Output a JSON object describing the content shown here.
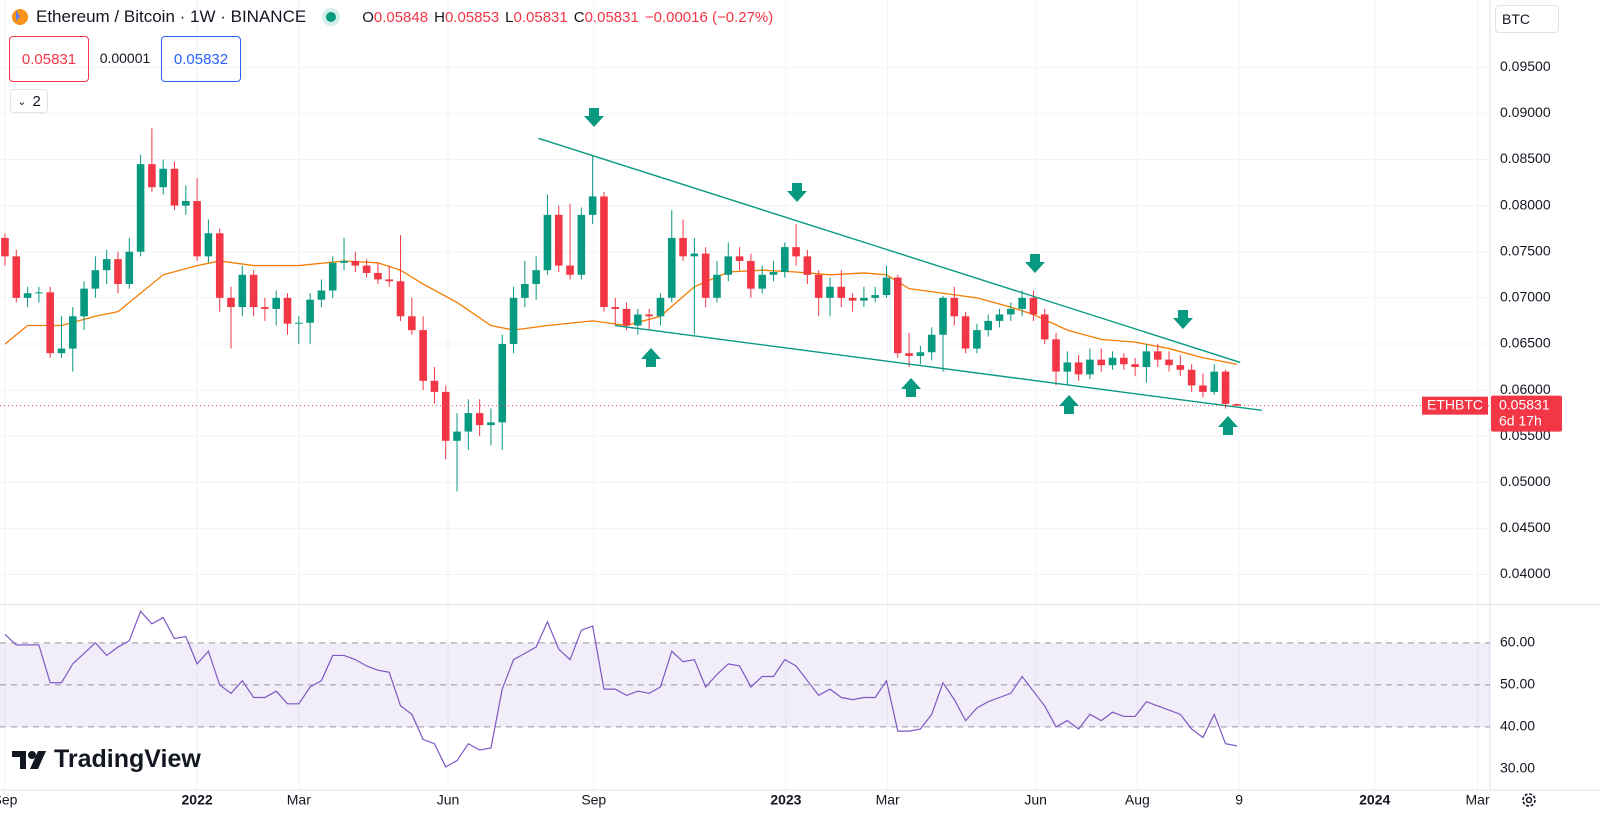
{
  "header": {
    "title": "Ethereum / Bitcoin · 1W · BINANCE",
    "ohlc_labels": [
      "O",
      "H",
      "L",
      "C"
    ],
    "change": "−0.00016 (−0.27%)",
    "sell": 0.05831,
    "spread": 1e-05,
    "buy": 0.05832,
    "indicators": "2",
    "currency": "BTC",
    "logo": "TradingView"
  },
  "chart_data": {
    "type": "candlestick",
    "symbol": "ETHBTC",
    "countdown": "6d 17h",
    "up_color": "#089981",
    "down_color": "#f23645",
    "xlim": [
      -0.44,
      131.4
    ],
    "xticks": [
      {
        "value": 0,
        "label": "Sep"
      },
      {
        "value": 17,
        "label": "2022"
      },
      {
        "value": 26,
        "label": "Mar"
      },
      {
        "value": 39.2,
        "label": "Jun"
      },
      {
        "value": 52.1,
        "label": "Sep"
      },
      {
        "value": 69.1,
        "label": "2023"
      },
      {
        "value": 78.1,
        "label": "Mar"
      },
      {
        "value": 91.2,
        "label": "Jun"
      },
      {
        "value": 100.2,
        "label": "Aug"
      },
      {
        "value": 109.2,
        "label": "9"
      },
      {
        "value": 121.2,
        "label": "2024"
      },
      {
        "value": 130.3,
        "label": "Mar"
      }
    ],
    "ylim": [
      0.0368,
      0.1023
    ],
    "yticks": [
      {
        "value": 0.095,
        "label": "0.09500"
      },
      {
        "value": 0.09,
        "label": "0.09000"
      },
      {
        "value": 0.085,
        "label": "0.08500"
      },
      {
        "value": 0.08,
        "label": "0.08000"
      },
      {
        "value": 0.075,
        "label": "0.07500"
      },
      {
        "value": 0.07,
        "label": "0.07000"
      },
      {
        "value": 0.065,
        "label": "0.06500"
      },
      {
        "value": 0.06,
        "label": "0.06000"
      },
      {
        "value": 0.055,
        "label": "0.05500"
      },
      {
        "value": 0.05,
        "label": "0.05000"
      },
      {
        "value": 0.045,
        "label": "0.04500"
      },
      {
        "value": 0.04,
        "label": "0.04000"
      }
    ],
    "candles": [
      [
        0.0765,
        0.077,
        0.0735,
        0.0745
      ],
      [
        0.0745,
        0.0752,
        0.0695,
        0.07
      ],
      [
        0.07,
        0.0712,
        0.069,
        0.0705
      ],
      [
        0.0705,
        0.0712,
        0.0695,
        0.0706
      ],
      [
        0.0706,
        0.0712,
        0.0635,
        0.064
      ],
      [
        0.064,
        0.068,
        0.0635,
        0.0645
      ],
      [
        0.0645,
        0.069,
        0.062,
        0.068
      ],
      [
        0.068,
        0.0718,
        0.0665,
        0.071
      ],
      [
        0.071,
        0.0745,
        0.07,
        0.073
      ],
      [
        0.073,
        0.0752,
        0.0715,
        0.0742
      ],
      [
        0.0742,
        0.075,
        0.0705,
        0.0715
      ],
      [
        0.0715,
        0.0765,
        0.071,
        0.075
      ],
      [
        0.075,
        0.0855,
        0.0745,
        0.0845
      ],
      [
        0.0845,
        0.0884,
        0.0815,
        0.082
      ],
      [
        0.082,
        0.085,
        0.0812,
        0.084
      ],
      [
        0.084,
        0.0848,
        0.0795,
        0.08
      ],
      [
        0.08,
        0.0822,
        0.079,
        0.0805
      ],
      [
        0.0805,
        0.083,
        0.074,
        0.0745
      ],
      [
        0.0745,
        0.0785,
        0.0738,
        0.077
      ],
      [
        0.077,
        0.0775,
        0.0685,
        0.07
      ],
      [
        0.07,
        0.0712,
        0.0645,
        0.069
      ],
      [
        0.069,
        0.0735,
        0.068,
        0.0725
      ],
      [
        0.0725,
        0.073,
        0.068,
        0.069
      ],
      [
        0.069,
        0.07,
        0.0675,
        0.0688
      ],
      [
        0.0688,
        0.0708,
        0.067,
        0.07
      ],
      [
        0.07,
        0.0705,
        0.066,
        0.0672
      ],
      [
        0.0672,
        0.068,
        0.065,
        0.0673
      ],
      [
        0.0673,
        0.0705,
        0.065,
        0.0698
      ],
      [
        0.0698,
        0.072,
        0.069,
        0.0708
      ],
      [
        0.0708,
        0.0745,
        0.07,
        0.0738
      ],
      [
        0.0738,
        0.0765,
        0.073,
        0.074
      ],
      [
        0.074,
        0.075,
        0.0728,
        0.0735
      ],
      [
        0.0735,
        0.0742,
        0.0722,
        0.0727
      ],
      [
        0.0727,
        0.0738,
        0.0715,
        0.072
      ],
      [
        0.072,
        0.0735,
        0.0712,
        0.0718
      ],
      [
        0.0718,
        0.0768,
        0.0675,
        0.068
      ],
      [
        0.068,
        0.07,
        0.066,
        0.0665
      ],
      [
        0.0665,
        0.068,
        0.06,
        0.061
      ],
      [
        0.061,
        0.0625,
        0.0585,
        0.0598
      ],
      [
        0.0598,
        0.0605,
        0.0525,
        0.0545
      ],
      [
        0.0545,
        0.0575,
        0.049,
        0.0555
      ],
      [
        0.0555,
        0.059,
        0.0535,
        0.0575
      ],
      [
        0.0575,
        0.059,
        0.055,
        0.0562
      ],
      [
        0.0562,
        0.058,
        0.054,
        0.0565
      ],
      [
        0.0565,
        0.066,
        0.0535,
        0.065
      ],
      [
        0.065,
        0.0712,
        0.064,
        0.07
      ],
      [
        0.07,
        0.074,
        0.069,
        0.0715
      ],
      [
        0.0715,
        0.0745,
        0.0698,
        0.073
      ],
      [
        0.073,
        0.0812,
        0.0725,
        0.079
      ],
      [
        0.079,
        0.08,
        0.0728,
        0.0735
      ],
      [
        0.0735,
        0.0802,
        0.072,
        0.0725
      ],
      [
        0.0725,
        0.0798,
        0.072,
        0.079
      ],
      [
        0.079,
        0.0855,
        0.078,
        0.081
      ],
      [
        0.081,
        0.0815,
        0.0685,
        0.069
      ],
      [
        0.069,
        0.07,
        0.067,
        0.0688
      ],
      [
        0.0688,
        0.0695,
        0.0665,
        0.067
      ],
      [
        0.067,
        0.0688,
        0.066,
        0.0682
      ],
      [
        0.0682,
        0.0688,
        0.0665,
        0.068
      ],
      [
        0.068,
        0.0705,
        0.067,
        0.07
      ],
      [
        0.07,
        0.0795,
        0.0695,
        0.0765
      ],
      [
        0.0765,
        0.0785,
        0.074,
        0.0745
      ],
      [
        0.0745,
        0.0765,
        0.066,
        0.0748
      ],
      [
        0.0748,
        0.0755,
        0.069,
        0.07
      ],
      [
        0.07,
        0.074,
        0.0695,
        0.0725
      ],
      [
        0.0725,
        0.076,
        0.0718,
        0.0745
      ],
      [
        0.0745,
        0.0755,
        0.073,
        0.074
      ],
      [
        0.074,
        0.0748,
        0.07,
        0.071
      ],
      [
        0.071,
        0.0735,
        0.0705,
        0.0725
      ],
      [
        0.0725,
        0.074,
        0.0718,
        0.0728
      ],
      [
        0.0728,
        0.076,
        0.0722,
        0.0755
      ],
      [
        0.0755,
        0.078,
        0.0735,
        0.0745
      ],
      [
        0.0745,
        0.0752,
        0.0715,
        0.0725
      ],
      [
        0.0725,
        0.073,
        0.068,
        0.07
      ],
      [
        0.07,
        0.0722,
        0.068,
        0.0712
      ],
      [
        0.0712,
        0.073,
        0.069,
        0.07
      ],
      [
        0.07,
        0.0705,
        0.0685,
        0.0697
      ],
      [
        0.0697,
        0.0712,
        0.069,
        0.07
      ],
      [
        0.07,
        0.0712,
        0.0695,
        0.0703
      ],
      [
        0.0703,
        0.0735,
        0.07,
        0.0722
      ],
      [
        0.0722,
        0.0725,
        0.0635,
        0.064
      ],
      [
        0.064,
        0.0662,
        0.0625,
        0.0637
      ],
      [
        0.0637,
        0.0648,
        0.0628,
        0.0641
      ],
      [
        0.0641,
        0.0668,
        0.0632,
        0.066
      ],
      [
        0.066,
        0.0702,
        0.062,
        0.07
      ],
      [
        0.07,
        0.0712,
        0.067,
        0.068
      ],
      [
        0.068,
        0.0685,
        0.064,
        0.0645
      ],
      [
        0.0645,
        0.0672,
        0.064,
        0.0665
      ],
      [
        0.0665,
        0.0682,
        0.0658,
        0.0675
      ],
      [
        0.0675,
        0.0688,
        0.0668,
        0.0682
      ],
      [
        0.0682,
        0.0695,
        0.0675,
        0.0688
      ],
      [
        0.0688,
        0.0708,
        0.068,
        0.07
      ],
      [
        0.07,
        0.0708,
        0.0675,
        0.0682
      ],
      [
        0.0682,
        0.0688,
        0.065,
        0.0655
      ],
      [
        0.0655,
        0.0662,
        0.0605,
        0.062
      ],
      [
        0.062,
        0.0642,
        0.0605,
        0.063
      ],
      [
        0.063,
        0.0638,
        0.061,
        0.0617
      ],
      [
        0.0617,
        0.0645,
        0.0612,
        0.0633
      ],
      [
        0.0633,
        0.0645,
        0.062,
        0.0627
      ],
      [
        0.0627,
        0.0642,
        0.0622,
        0.0635
      ],
      [
        0.0635,
        0.064,
        0.0622,
        0.0628
      ],
      [
        0.0628,
        0.0635,
        0.0615,
        0.0625
      ],
      [
        0.0625,
        0.065,
        0.0608,
        0.0642
      ],
      [
        0.0642,
        0.065,
        0.0625,
        0.0633
      ],
      [
        0.0633,
        0.0642,
        0.062,
        0.0627
      ],
      [
        0.0627,
        0.0638,
        0.0615,
        0.0622
      ],
      [
        0.0622,
        0.0628,
        0.0598,
        0.0605
      ],
      [
        0.0605,
        0.0618,
        0.0592,
        0.0598
      ],
      [
        0.0598,
        0.0628,
        0.0595,
        0.062
      ],
      [
        0.062,
        0.0622,
        0.058,
        0.0585
      ],
      [
        0.05848,
        0.05853,
        0.05831,
        0.05831
      ]
    ],
    "ma": {
      "color": "#f57c00",
      "x": [
        0,
        2,
        5,
        8,
        10,
        12,
        14,
        17,
        19,
        22,
        26,
        30,
        33,
        35,
        37,
        40,
        43,
        45,
        48,
        52,
        55,
        58,
        61,
        64,
        67,
        70,
        73,
        76,
        78,
        80,
        83,
        86,
        89,
        91,
        94,
        97,
        100,
        103,
        106,
        109
      ],
      "values": [
        0.065,
        0.067,
        0.067,
        0.068,
        0.0685,
        0.0705,
        0.0725,
        0.0735,
        0.074,
        0.0735,
        0.0735,
        0.074,
        0.0738,
        0.073,
        0.0715,
        0.0695,
        0.067,
        0.0665,
        0.067,
        0.0675,
        0.067,
        0.068,
        0.0712,
        0.0728,
        0.073,
        0.0728,
        0.0725,
        0.0727,
        0.0725,
        0.071,
        0.0705,
        0.07,
        0.069,
        0.0682,
        0.0665,
        0.0655,
        0.0652,
        0.0645,
        0.0635,
        0.0628
      ]
    },
    "trendlines": [
      {
        "color": "#089981",
        "x": [
          47.2,
          109.3
        ],
        "values": [
          0.0873,
          0.063
        ]
      },
      {
        "color": "#089981",
        "x": [
          54.0,
          111.2
        ],
        "values": [
          0.067,
          0.0578
        ]
      }
    ],
    "rsi": {
      "color": "#7e57c2",
      "y2lim": [
        25,
        69
      ],
      "y2ticks": [
        {
          "value": 60,
          "label": "60.00"
        },
        {
          "value": 50,
          "label": "50.00"
        },
        {
          "value": 40,
          "label": "40.00"
        },
        {
          "value": 30,
          "label": "30.00"
        }
      ],
      "values": [
        62,
        59.5,
        59.5,
        59.5,
        50.5,
        50.5,
        55,
        57.5,
        60,
        57,
        59,
        60.5,
        67.5,
        64.5,
        66,
        61,
        61.5,
        55,
        58,
        50,
        48,
        51,
        47,
        47,
        48.5,
        45.5,
        45.5,
        49.5,
        51,
        57,
        57,
        56,
        54.5,
        53.5,
        53,
        45,
        43,
        37,
        36,
        30.5,
        32,
        36,
        34.5,
        35,
        49,
        56,
        57.5,
        59,
        65,
        58.5,
        56,
        63,
        64,
        49,
        49,
        47.5,
        48.5,
        48,
        49.5,
        58,
        55.5,
        56,
        49.5,
        52.5,
        55,
        54.5,
        49.5,
        52,
        52,
        56,
        54.5,
        51,
        47.5,
        49,
        47,
        46.5,
        47,
        47,
        51,
        39,
        39,
        39.5,
        43,
        50.5,
        46.5,
        41.5,
        44.5,
        46,
        47,
        48,
        52,
        48.5,
        45,
        40,
        41.5,
        39.5,
        43,
        41.5,
        43.5,
        42.5,
        42.5,
        46,
        45,
        44,
        43,
        39.5,
        37.5,
        43,
        36,
        35.5
      ]
    }
  }
}
